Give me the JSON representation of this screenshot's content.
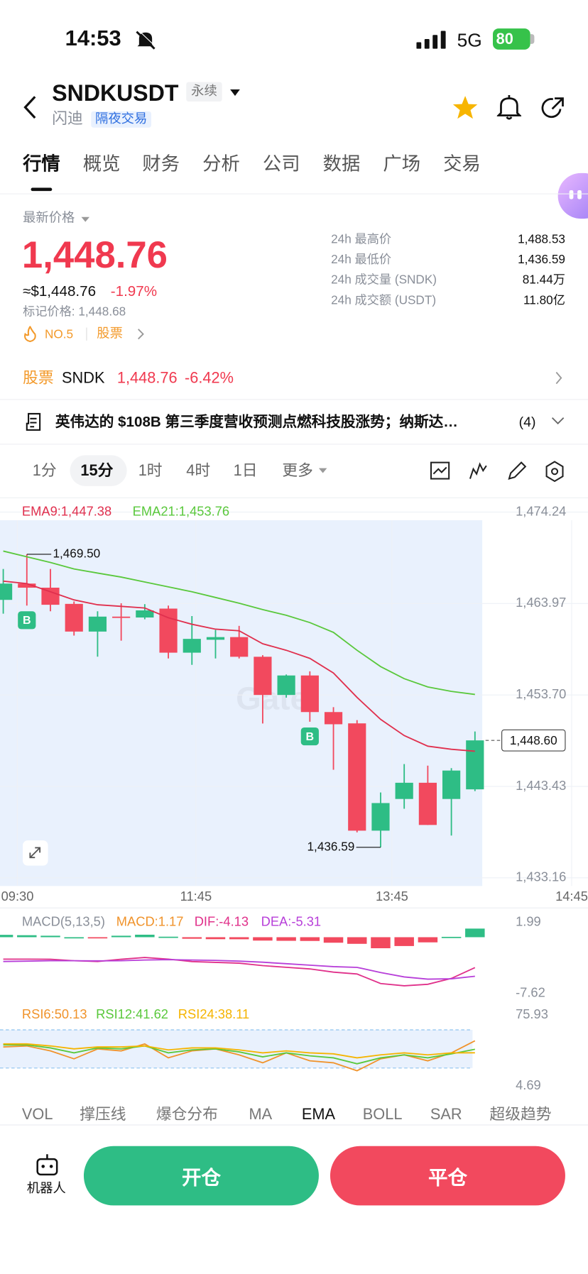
{
  "status_bar": {
    "time": "14:53",
    "network": "5G",
    "battery": "80"
  },
  "header": {
    "symbol": "SNDKUSDT",
    "contract_type": "永续",
    "name": "闪迪",
    "tag": "隔夜交易"
  },
  "tabs": [
    "行情",
    "概览",
    "财务",
    "分析",
    "公司",
    "数据",
    "广场",
    "交易"
  ],
  "price": {
    "label": "最新价格",
    "last": "1,448.76",
    "usd": "≈$1,448.76",
    "change": "-1.97%",
    "mark": "标记价格: 1,448.68",
    "rank": "NO.5",
    "sector": "股票"
  },
  "stats": [
    {
      "label": "24h 最高价",
      "value": "1,488.53"
    },
    {
      "label": "24h 最低价",
      "value": "1,436.59"
    },
    {
      "label": "24h 成交量 (SNDK)",
      "value": "81.44万"
    },
    {
      "label": "24h 成交额 (USDT)",
      "value": "11.80亿"
    }
  ],
  "stock": {
    "tag": "股票",
    "symbol": "SNDK",
    "price": "1,448.76",
    "change": "-6.42%"
  },
  "news": {
    "text": "英伟达的 $108B 第三季度营收预测点燃科技股涨势；纳斯达…",
    "count": "(4)"
  },
  "intervals": [
    "1分",
    "15分",
    "1时",
    "4时",
    "1日",
    "更多"
  ],
  "chart_data": [
    {
      "type": "candlestick",
      "open": [
        1464.38,
        1466.21,
        1465.75,
        1463.93,
        1460.82,
        1462.5,
        1462.4,
        1463.4,
        1458.45,
        1459.9,
        1460.2,
        1457.99,
        1453.7,
        1455.89,
        1451.78,
        1450.51,
        1438.46,
        1442.02,
        1443.84,
        1442.02,
        1443.1
      ],
      "high": [
        1467.85,
        1469.5,
        1467.85,
        1464.2,
        1463.1,
        1464.0,
        1463.9,
        1463.74,
        1462.56,
        1461.0,
        1461.46,
        1458.17,
        1456.0,
        1456.35,
        1452.33,
        1450.87,
        1442.75,
        1445.94,
        1445.76,
        1445.48,
        1449.6
      ],
      "low": [
        1462.83,
        1463.74,
        1463.1,
        1460.37,
        1458.0,
        1459.8,
        1462.2,
        1457.8,
        1457.08,
        1457.8,
        1457.8,
        1450.5,
        1453.4,
        1450.69,
        1445.3,
        1438.27,
        1436.59,
        1440.92,
        1439.1,
        1437.91,
        1442.9
      ],
      "close": [
        1466.21,
        1465.75,
        1463.83,
        1460.82,
        1462.5,
        1462.4,
        1463.2,
        1458.45,
        1460.0,
        1460.2,
        1457.99,
        1453.7,
        1455.89,
        1451.78,
        1450.41,
        1438.46,
        1441.56,
        1443.84,
        1439.1,
        1445.21,
        1448.6
      ],
      "up_color": "#2ebd85",
      "down_color": "#f2495e",
      "series": [
        {
          "name": "EMA9:1,447.38",
          "color": "#e0304e",
          "values": [
            1466.48,
            1466.21,
            1465.29,
            1464.38,
            1463.83,
            1463.65,
            1463.47,
            1462.37,
            1461.64,
            1461.09,
            1460.91,
            1459.45,
            1458.72,
            1457.81,
            1456.17,
            1453.43,
            1450.96,
            1449.14,
            1447.95,
            1447.6,
            1447.38
          ]
        },
        {
          "name": "EMA21:1,453.76",
          "color": "#5ac83c",
          "values": [
            1469.86,
            1469.22,
            1468.58,
            1467.85,
            1467.39,
            1466.94,
            1466.39,
            1465.84,
            1465.29,
            1464.65,
            1464.01,
            1463.29,
            1462.65,
            1461.83,
            1460.73,
            1458.72,
            1456.89,
            1455.53,
            1454.6,
            1454.1,
            1453.76
          ]
        }
      ],
      "ylim": [
        1433.16,
        1474.24
      ],
      "yticks": [
        {
          "value": 1474.24,
          "label": "1,474.24"
        },
        {
          "value": 1463.97,
          "label": "1,463.97"
        },
        {
          "value": 1453.7,
          "label": "1,453.70"
        },
        {
          "value": 1443.43,
          "label": "1,443.43"
        },
        {
          "value": 1433.16,
          "label": "1,433.16"
        }
      ],
      "xticks": [
        {
          "value": 0.6,
          "label": "09:30"
        },
        {
          "value": 8.17,
          "label": "11:45"
        },
        {
          "value": 16.48,
          "label": "13:45"
        },
        {
          "value": 24.1,
          "label": "14:45"
        }
      ],
      "annotations": [
        {
          "label": "1,469.50",
          "value": 1469.5
        },
        {
          "label": "1,436.59",
          "value": 1436.59
        },
        {
          "label": "1,448.60",
          "value": 1448.6
        }
      ],
      "markers": [
        {
          "label": "B",
          "index": 1
        },
        {
          "label": "B",
          "index": 13
        }
      ]
    },
    {
      "type": "bar",
      "title": "MACD(5,13,5)",
      "up_color": "#2ebd85",
      "down_color": "#f2495e",
      "series": [
        {
          "name": "MACD:1.17",
          "type": "bar",
          "color": "#f0932b",
          "values": [
            0.32,
            0.27,
            0.2,
            0,
            -0.08,
            0.2,
            0.34,
            0.07,
            -0.21,
            -0.27,
            -0.28,
            -0.46,
            -0.49,
            -0.51,
            -0.75,
            -0.9,
            -1.5,
            -1.2,
            -0.7,
            0.05,
            1.17
          ]
        },
        {
          "name": "DIF:-4.13",
          "type": "line",
          "color": "#e0308a",
          "values": [
            -2.98,
            -2.98,
            -3.0,
            -3.2,
            -3.3,
            -3.0,
            -2.76,
            -2.98,
            -3.31,
            -3.42,
            -3.53,
            -3.86,
            -4.09,
            -4.31,
            -4.75,
            -5.0,
            -6.3,
            -6.6,
            -6.4,
            -5.6,
            -4.13
          ]
        },
        {
          "name": "DEA:-5.31",
          "type": "line",
          "color": "#b73fd9",
          "values": [
            -3.3,
            -3.25,
            -3.2,
            -3.2,
            -3.22,
            -3.2,
            -3.1,
            -3.05,
            -3.1,
            -3.15,
            -3.25,
            -3.4,
            -3.6,
            -3.8,
            -4.0,
            -4.1,
            -4.8,
            -5.4,
            -5.7,
            -5.65,
            -5.31
          ]
        }
      ],
      "ylim": [
        -7.62,
        1.99
      ],
      "yticks": [
        1.99,
        -7.62
      ]
    },
    {
      "type": "line",
      "series": [
        {
          "name": "RSI6:50.13",
          "color": "#f0932b",
          "values": [
            44,
            45,
            40,
            32,
            42,
            40,
            47,
            33,
            40,
            42,
            36,
            28,
            38,
            30,
            28,
            20,
            32,
            36,
            30,
            38,
            50.13
          ]
        },
        {
          "name": "RSI12:41.62",
          "color": "#5ac83c",
          "values": [
            46,
            46,
            43,
            38,
            43,
            42,
            45,
            38,
            41,
            42,
            39,
            34,
            38,
            35,
            33,
            27,
            33,
            36,
            33,
            37,
            41.62
          ]
        },
        {
          "name": "RSI24:38.11",
          "color": "#f5b400",
          "values": [
            47,
            47,
            45,
            42,
            44,
            44,
            45,
            41,
            43,
            43,
            41,
            38,
            40,
            38,
            37,
            33,
            36,
            38,
            36,
            38,
            38.11
          ]
        }
      ],
      "ylim": [
        4.69,
        75.93
      ],
      "yticks": [
        75.93,
        4.69
      ]
    }
  ],
  "indicators": [
    "VOL",
    "撑压线",
    "爆仓分布",
    "MA",
    "EMA",
    "BOLL",
    "SAR",
    "超级趋势"
  ],
  "actions": {
    "robot": "机器人",
    "open": "开仓",
    "close": "平仓"
  }
}
